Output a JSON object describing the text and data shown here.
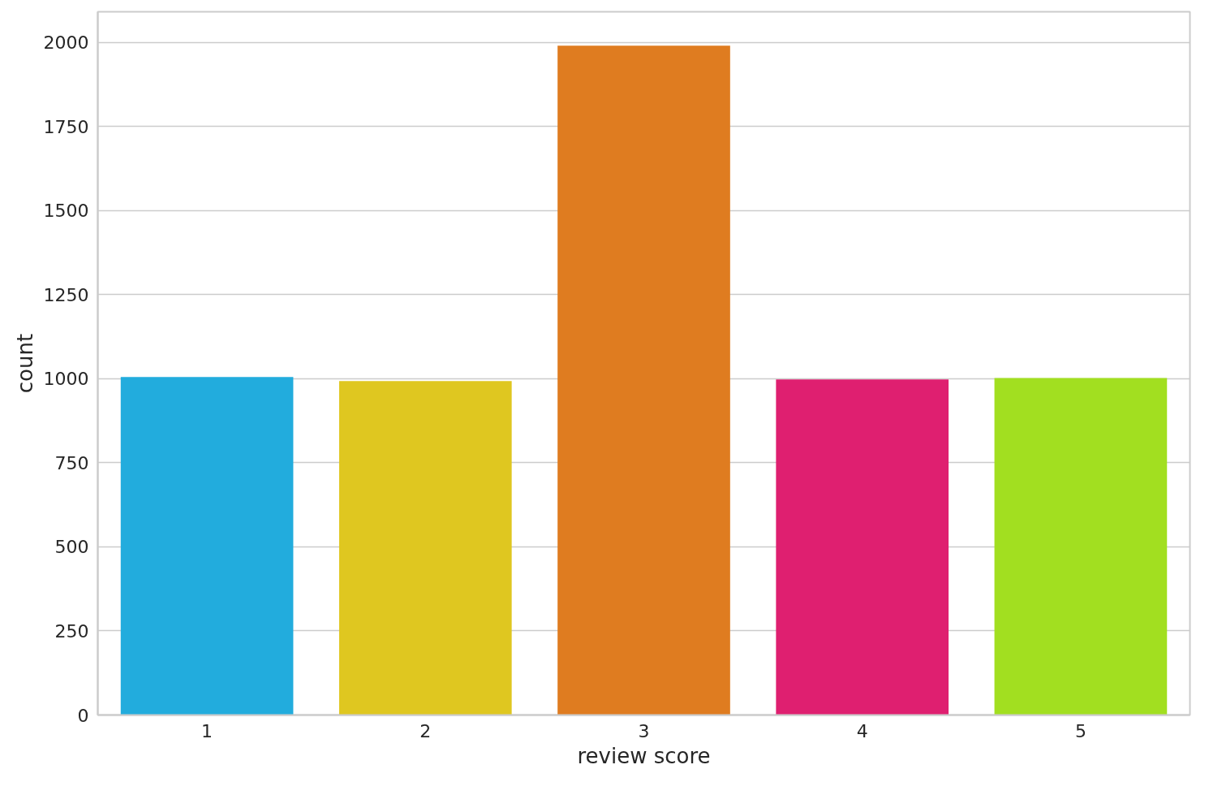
{
  "chart_data": {
    "type": "bar",
    "xlabel": "review score",
    "ylabel": "count",
    "categories": [
      "1",
      "2",
      "3",
      "4",
      "5"
    ],
    "values": [
      1005,
      993,
      1990,
      998,
      1002
    ],
    "colors": [
      "#22acdd",
      "#dfc720",
      "#df7c20",
      "#df1f70",
      "#a2df20"
    ],
    "ylim": [
      0,
      2091
    ],
    "yticks": [
      0,
      250,
      500,
      750,
      1000,
      1250,
      1500,
      1750,
      2000
    ],
    "grid": "y"
  }
}
